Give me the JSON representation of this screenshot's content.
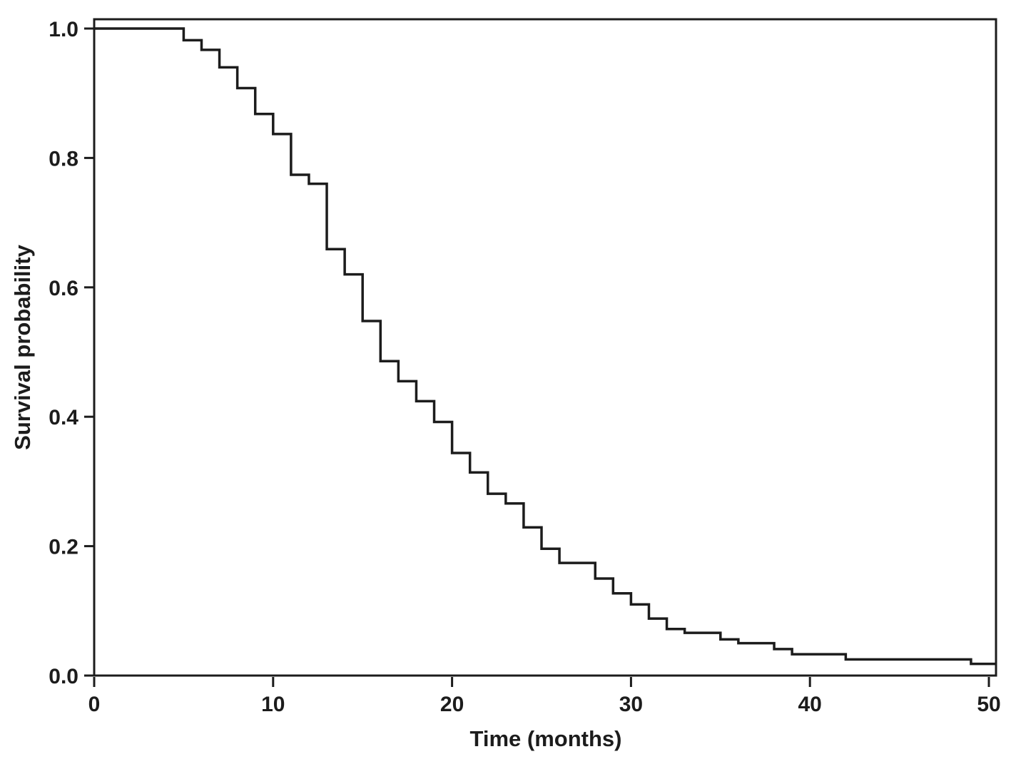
{
  "figure": {
    "background": "#ffffff",
    "frame_color": "#1c1c1c",
    "curve_color": "#1c1c1c"
  },
  "chart_data": {
    "type": "line",
    "subtype": "kaplan-meier-step-curve",
    "title": "",
    "xlabel": "Time (months)",
    "ylabel": "Survival probability",
    "xlim": [
      0,
      50.45
    ],
    "ylim": [
      0.0,
      1.0
    ],
    "grid": false,
    "legend": null,
    "x_tick_values": [
      0,
      10,
      20,
      30,
      40,
      50
    ],
    "x_tick_labels": [
      "0",
      "10",
      "20",
      "30",
      "40",
      "50"
    ],
    "y_tick_values": [
      1.0,
      0.8,
      0.6,
      0.4,
      0.2,
      0.0
    ],
    "y_tick_labels": [
      "1.0",
      "0.8",
      "0.6",
      "0.4",
      "0.2",
      "0.0"
    ],
    "start": {
      "t": 0,
      "S": 1.0
    },
    "end_t": 50.45,
    "steps": [
      {
        "t": 5,
        "S": 0.982
      },
      {
        "t": 6,
        "S": 0.967
      },
      {
        "t": 7,
        "S": 0.94
      },
      {
        "t": 8,
        "S": 0.908
      },
      {
        "t": 9,
        "S": 0.868
      },
      {
        "t": 10,
        "S": 0.837
      },
      {
        "t": 11,
        "S": 0.774
      },
      {
        "t": 12,
        "S": 0.76
      },
      {
        "t": 13,
        "S": 0.659
      },
      {
        "t": 14,
        "S": 0.62
      },
      {
        "t": 15,
        "S": 0.548
      },
      {
        "t": 16,
        "S": 0.486
      },
      {
        "t": 17,
        "S": 0.455
      },
      {
        "t": 18,
        "S": 0.424
      },
      {
        "t": 19,
        "S": 0.392
      },
      {
        "t": 20,
        "S": 0.344
      },
      {
        "t": 21,
        "S": 0.314
      },
      {
        "t": 22,
        "S": 0.281
      },
      {
        "t": 23,
        "S": 0.266
      },
      {
        "t": 24,
        "S": 0.229
      },
      {
        "t": 25,
        "S": 0.196
      },
      {
        "t": 26,
        "S": 0.174
      },
      {
        "t": 28,
        "S": 0.15
      },
      {
        "t": 29,
        "S": 0.127
      },
      {
        "t": 30,
        "S": 0.11
      },
      {
        "t": 31,
        "S": 0.088
      },
      {
        "t": 32,
        "S": 0.072
      },
      {
        "t": 33,
        "S": 0.066
      },
      {
        "t": 35,
        "S": 0.056
      },
      {
        "t": 36,
        "S": 0.05
      },
      {
        "t": 38,
        "S": 0.041
      },
      {
        "t": 39,
        "S": 0.033
      },
      {
        "t": 42,
        "S": 0.025
      },
      {
        "t": 49,
        "S": 0.018
      }
    ]
  }
}
